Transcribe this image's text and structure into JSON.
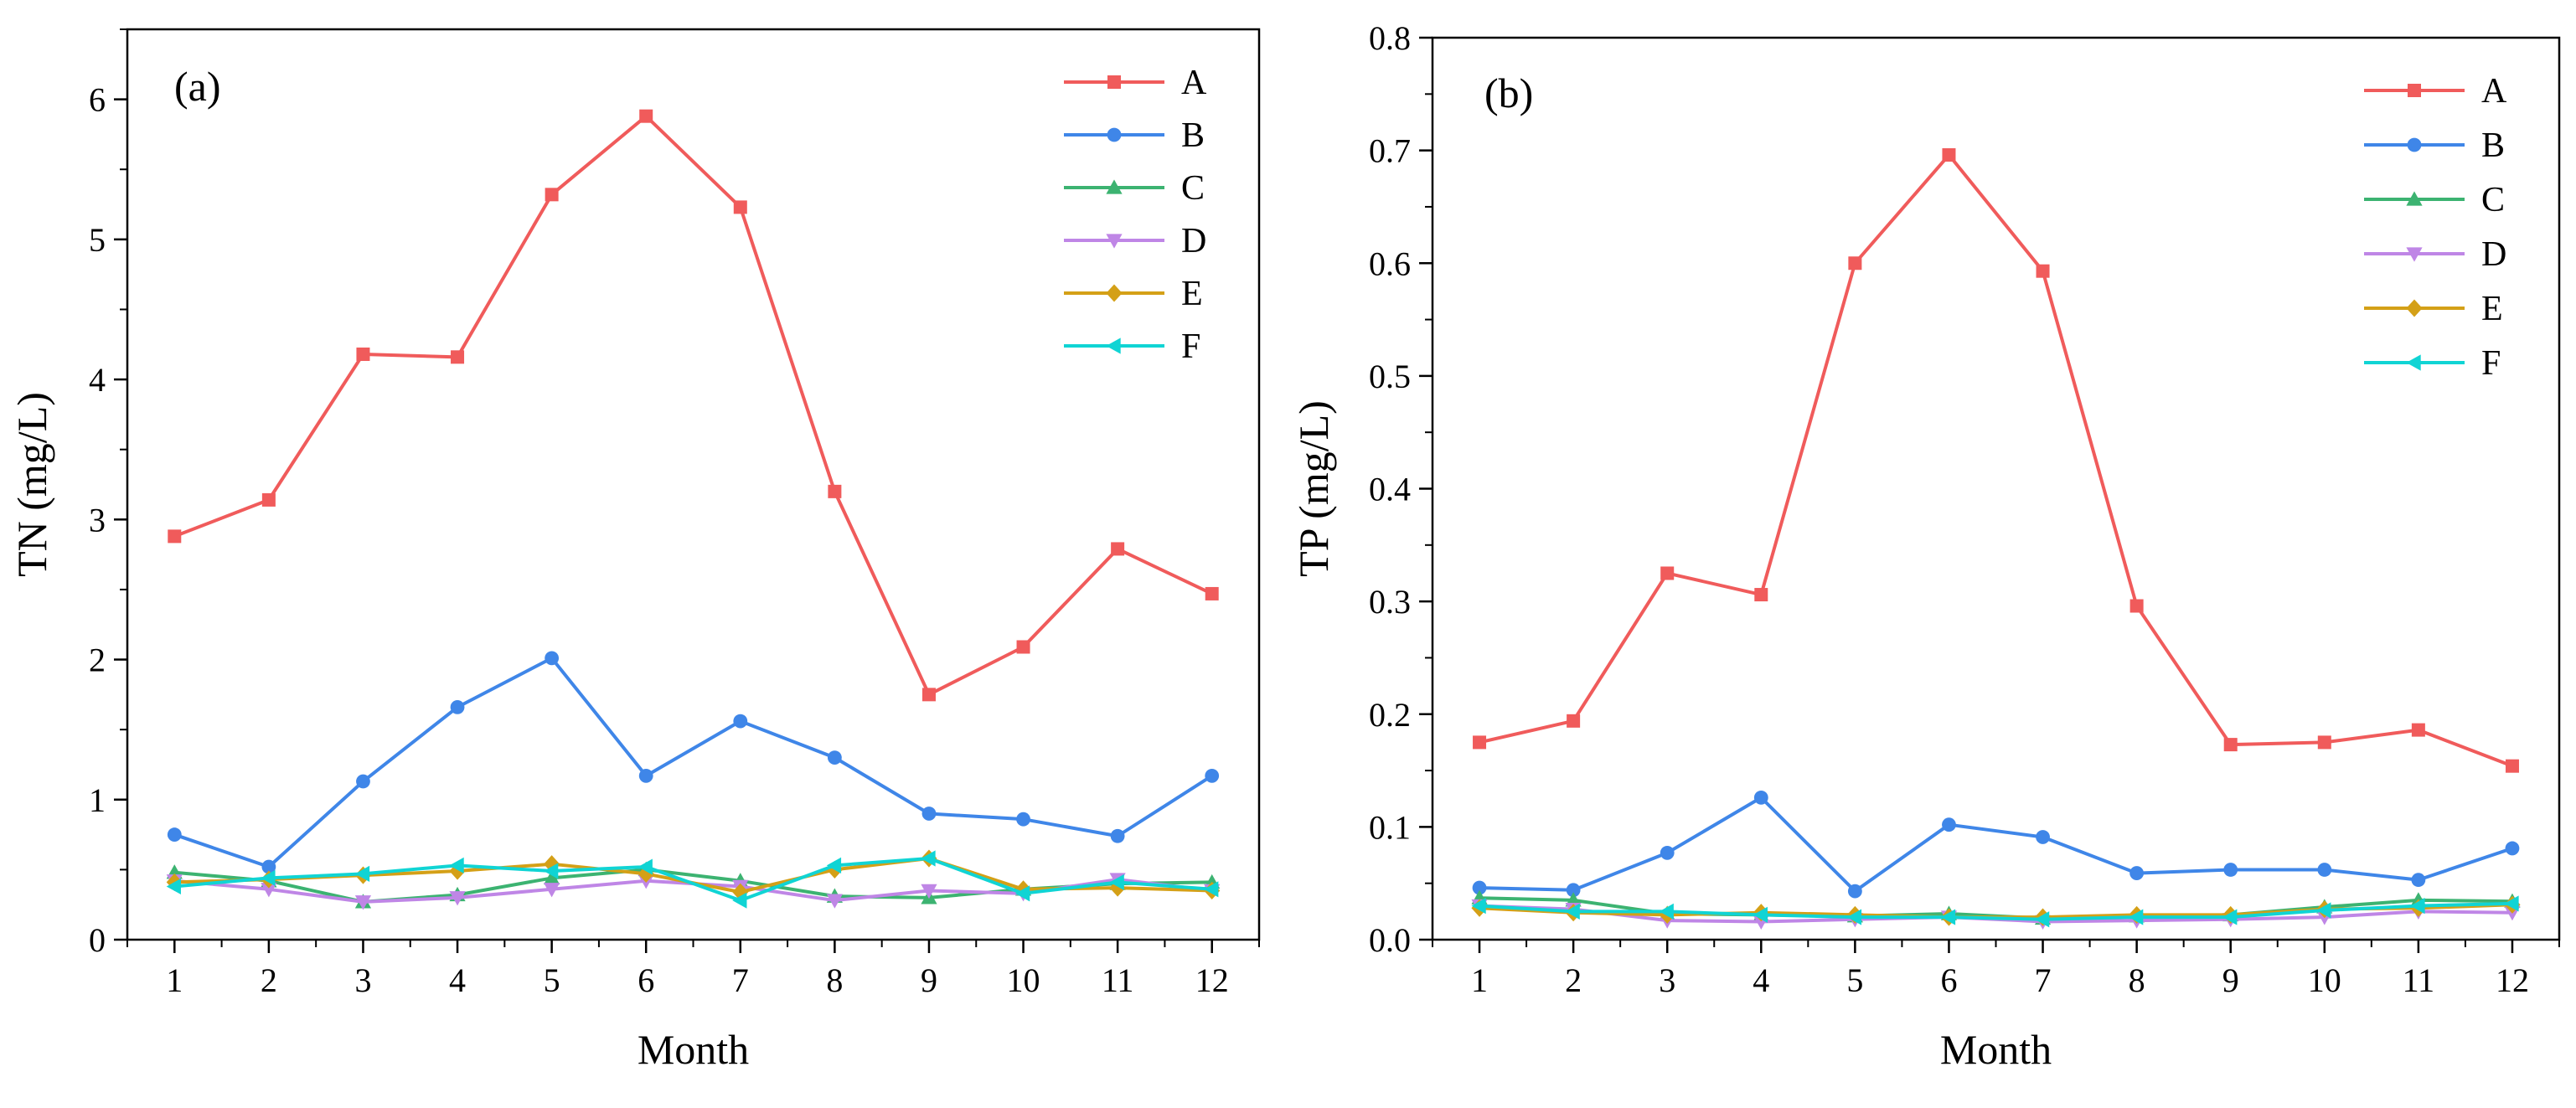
{
  "chart_data": [
    {
      "type": "line",
      "panel_label": "(a)",
      "xlabel": "Month",
      "ylabel": "TN  (mg/L)",
      "x": [
        1,
        2,
        3,
        4,
        5,
        6,
        7,
        8,
        9,
        10,
        11,
        12
      ],
      "xticks": [
        "1",
        "2",
        "3",
        "4",
        "5",
        "6",
        "7",
        "8",
        "9",
        "10",
        "11",
        "12"
      ],
      "xlim": [
        0.5,
        12.5
      ],
      "ylim": [
        0,
        6.5
      ],
      "yticks": [
        0,
        1,
        2,
        3,
        4,
        5,
        6
      ],
      "ytick_labels": [
        "0",
        "1",
        "2",
        "3",
        "4",
        "5",
        "6"
      ],
      "legend_position": "top-right",
      "series": [
        {
          "name": "A",
          "color": "#f05b5b",
          "marker": "square",
          "values": [
            2.88,
            3.14,
            4.18,
            4.16,
            5.32,
            5.88,
            5.23,
            3.2,
            1.75,
            2.09,
            2.79,
            2.47
          ]
        },
        {
          "name": "B",
          "color": "#3f86e8",
          "marker": "circle",
          "values": [
            0.75,
            0.52,
            1.13,
            1.66,
            2.01,
            1.17,
            1.56,
            1.3,
            0.9,
            0.86,
            0.74,
            1.17
          ]
        },
        {
          "name": "C",
          "color": "#3cb371",
          "marker": "triangle-up",
          "values": [
            0.48,
            0.42,
            0.27,
            0.32,
            0.44,
            0.5,
            0.42,
            0.31,
            0.3,
            0.36,
            0.4,
            0.41
          ]
        },
        {
          "name": "D",
          "color": "#bf86e6",
          "marker": "triangle-down",
          "values": [
            0.42,
            0.36,
            0.27,
            0.3,
            0.36,
            0.42,
            0.38,
            0.28,
            0.35,
            0.33,
            0.43,
            0.35
          ]
        },
        {
          "name": "E",
          "color": "#d4a017",
          "marker": "diamond",
          "values": [
            0.41,
            0.43,
            0.46,
            0.49,
            0.54,
            0.47,
            0.34,
            0.5,
            0.58,
            0.36,
            0.37,
            0.35
          ]
        },
        {
          "name": "F",
          "color": "#10d4d4",
          "marker": "triangle-left",
          "values": [
            0.38,
            0.44,
            0.47,
            0.53,
            0.49,
            0.52,
            0.28,
            0.53,
            0.58,
            0.33,
            0.41,
            0.36
          ]
        }
      ]
    },
    {
      "type": "line",
      "panel_label": "(b)",
      "xlabel": "Month",
      "ylabel": "TP  (mg/L)",
      "x": [
        1,
        2,
        3,
        4,
        5,
        6,
        7,
        8,
        9,
        10,
        11,
        12
      ],
      "xticks": [
        "1",
        "2",
        "3",
        "4",
        "5",
        "6",
        "7",
        "8",
        "9",
        "10",
        "11",
        "12"
      ],
      "xlim": [
        0.5,
        12.5
      ],
      "ylim": [
        0,
        0.8
      ],
      "yticks": [
        0,
        0.1,
        0.2,
        0.3,
        0.4,
        0.5,
        0.6,
        0.7,
        0.8
      ],
      "ytick_labels": [
        "0.0",
        "0.1",
        "0.2",
        "0.3",
        "0.4",
        "0.5",
        "0.6",
        "0.7",
        "0.8"
      ],
      "legend_position": "top-right",
      "series": [
        {
          "name": "A",
          "color": "#f05b5b",
          "marker": "square",
          "values": [
            0.175,
            0.194,
            0.325,
            0.306,
            0.6,
            0.696,
            0.593,
            0.296,
            0.173,
            0.175,
            0.186,
            0.154
          ]
        },
        {
          "name": "B",
          "color": "#3f86e8",
          "marker": "circle",
          "values": [
            0.046,
            0.044,
            0.077,
            0.126,
            0.043,
            0.102,
            0.091,
            0.059,
            0.062,
            0.062,
            0.053,
            0.081
          ]
        },
        {
          "name": "C",
          "color": "#3cb371",
          "marker": "triangle-up",
          "values": [
            0.037,
            0.035,
            0.023,
            0.022,
            0.021,
            0.023,
            0.019,
            0.021,
            0.022,
            0.029,
            0.035,
            0.034
          ]
        },
        {
          "name": "D",
          "color": "#bf86e6",
          "marker": "triangle-down",
          "values": [
            0.03,
            0.027,
            0.017,
            0.016,
            0.018,
            0.02,
            0.016,
            0.017,
            0.018,
            0.02,
            0.025,
            0.024
          ]
        },
        {
          "name": "E",
          "color": "#d4a017",
          "marker": "diamond",
          "values": [
            0.028,
            0.024,
            0.022,
            0.024,
            0.022,
            0.02,
            0.02,
            0.022,
            0.022,
            0.027,
            0.028,
            0.031
          ]
        },
        {
          "name": "F",
          "color": "#10d4d4",
          "marker": "triangle-left",
          "values": [
            0.03,
            0.025,
            0.025,
            0.022,
            0.02,
            0.02,
            0.018,
            0.02,
            0.02,
            0.026,
            0.03,
            0.032
          ]
        }
      ]
    }
  ]
}
